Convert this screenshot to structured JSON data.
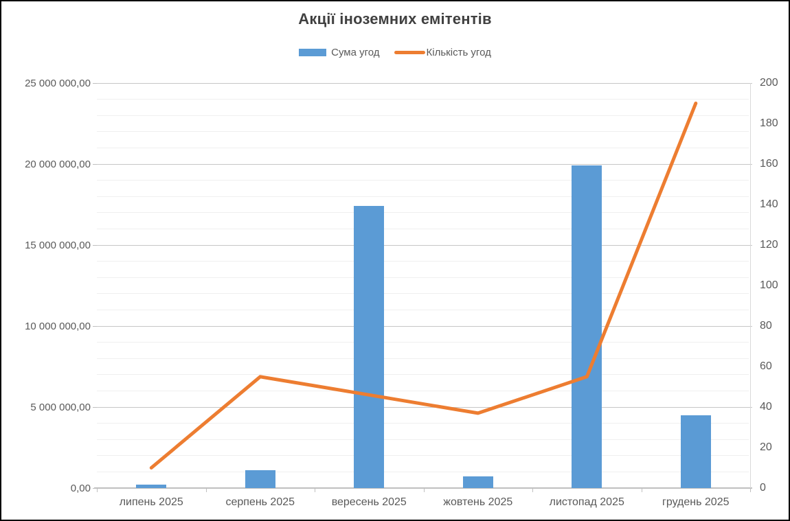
{
  "title": "Акції іноземних емітентів",
  "legend": {
    "items": [
      {
        "label": "Сума угод",
        "type": "bar",
        "color": "#5B9BD5"
      },
      {
        "label": "Кількість угод",
        "type": "line",
        "color": "#ED7D31"
      }
    ]
  },
  "colors": {
    "bar_series": "#5B9BD5",
    "line_series": "#ED7D31",
    "major_gridline": "#c6c6c6",
    "minor_gridline": "#efefef",
    "axis_text": "#595959",
    "title_text": "#404040"
  },
  "chart_data": {
    "type": "combo",
    "title": "Акції іноземних емітентів",
    "categories": [
      "липень 2025",
      "серпень 2025",
      "вересень 2025",
      "жовтень 2025",
      "листопад 2025",
      "грудень 2025"
    ],
    "series": [
      {
        "name": "Сума угод",
        "type": "bar",
        "axis": "left",
        "color": "#5B9BD5",
        "values": [
          200000,
          1100000,
          17400000,
          700000,
          19900000,
          4500000
        ]
      },
      {
        "name": "Кількість угод",
        "type": "line",
        "axis": "right",
        "color": "#ED7D31",
        "values": [
          10,
          55,
          46,
          37,
          55,
          190
        ]
      }
    ],
    "left_axis": {
      "min": 0,
      "max": 25000000,
      "major_step": 5000000,
      "minor_step": 1000000,
      "tick_labels": [
        "0,00",
        "5 000 000,00",
        "10 000 000,00",
        "15 000 000,00",
        "20 000 000,00",
        "25 000 000,00"
      ]
    },
    "right_axis": {
      "min": 0,
      "max": 200,
      "label_step": 20,
      "tick_labels": [
        "0",
        "20",
        "40",
        "60",
        "80",
        "100",
        "120",
        "140",
        "160",
        "180",
        "200"
      ]
    },
    "grid": "major-and-minor-horizontal",
    "legend_position": "top"
  }
}
